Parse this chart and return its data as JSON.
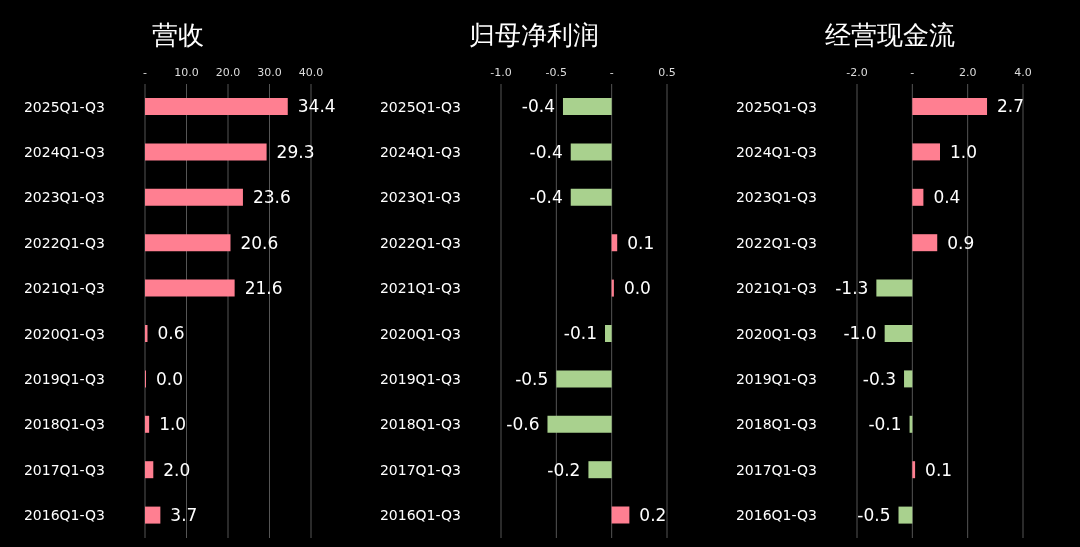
{
  "chart_data": [
    {
      "type": "bar",
      "orientation": "horizontal",
      "title": "营收",
      "categories": [
        "2025Q1-Q3",
        "2024Q1-Q3",
        "2023Q1-Q3",
        "2022Q1-Q3",
        "2021Q1-Q3",
        "2020Q1-Q3",
        "2019Q1-Q3",
        "2018Q1-Q3",
        "2017Q1-Q3",
        "2016Q1-Q3"
      ],
      "values": [
        34.4,
        29.3,
        23.6,
        20.6,
        21.6,
        0.6,
        0.0,
        1.0,
        2.0,
        3.7
      ],
      "value_labels": [
        "34.4",
        "29.3",
        "23.6",
        "20.6",
        "21.6",
        "0.6",
        "0.0",
        "1.0",
        "2.0",
        "3.7"
      ],
      "colors": [
        "#ff7f91",
        "#ff7f91",
        "#ff7f91",
        "#ff7f91",
        "#ff7f91",
        "#ff7f91",
        "#ff7f91",
        "#ff7f91",
        "#ff7f91",
        "#ff7f91"
      ],
      "xlim": [
        0,
        40
      ],
      "xticks": [
        {
          "value": 0,
          "label": "-"
        },
        {
          "value": 10,
          "label": "10.0"
        },
        {
          "value": 20,
          "label": "20.0"
        },
        {
          "value": 30,
          "label": "30.0"
        },
        {
          "value": 40,
          "label": "40.0"
        }
      ],
      "grid": "x"
    },
    {
      "type": "bar",
      "orientation": "horizontal",
      "title": "归母净利润",
      "categories": [
        "2025Q1-Q3",
        "2024Q1-Q3",
        "2023Q1-Q3",
        "2022Q1-Q3",
        "2021Q1-Q3",
        "2020Q1-Q3",
        "2019Q1-Q3",
        "2018Q1-Q3",
        "2017Q1-Q3",
        "2016Q1-Q3"
      ],
      "values": [
        -0.44,
        -0.37,
        -0.37,
        0.05,
        0.02,
        -0.06,
        -0.5,
        -0.58,
        -0.21,
        0.16
      ],
      "value_labels": [
        "-0.4",
        "-0.4",
        "-0.4",
        "0.1",
        "0.0",
        "-0.1",
        "-0.5",
        "-0.6",
        "-0.2",
        "0.2"
      ],
      "colors": [
        "#a9d18e",
        "#a9d18e",
        "#a9d18e",
        "#ff7f91",
        "#ff7f91",
        "#a9d18e",
        "#a9d18e",
        "#a9d18e",
        "#a9d18e",
        "#ff7f91"
      ],
      "xlim": [
        -1.0,
        0.5
      ],
      "xticks": [
        {
          "value": -1,
          "label": "-1.0"
        },
        -0.5,
        {
          "value": 0,
          "label": "-"
        },
        0.5
      ],
      "grid": "x"
    },
    {
      "type": "bar",
      "orientation": "horizontal",
      "title": "经营现金流",
      "categories": [
        "2025Q1-Q3",
        "2024Q1-Q3",
        "2023Q1-Q3",
        "2022Q1-Q3",
        "2021Q1-Q3",
        "2020Q1-Q3",
        "2019Q1-Q3",
        "2018Q1-Q3",
        "2017Q1-Q3",
        "2016Q1-Q3"
      ],
      "values": [
        2.7,
        1.0,
        0.4,
        0.9,
        -1.3,
        -1.0,
        -0.3,
        -0.1,
        0.1,
        -0.5
      ],
      "value_labels": [
        "2.7",
        "1.0",
        "0.4",
        "0.9",
        "-1.3",
        "-1.0",
        "-0.3",
        "-0.1",
        "0.1",
        "-0.5"
      ],
      "colors": [
        "#ff7f91",
        "#ff7f91",
        "#ff7f91",
        "#ff7f91",
        "#a9d18e",
        "#a9d18e",
        "#a9d18e",
        "#a9d18e",
        "#ff7f91",
        "#a9d18e"
      ],
      "xlim": [
        -2.0,
        4.0
      ],
      "xticks": [
        {
          "value": -2,
          "label": "-2.0"
        },
        {
          "value": 0,
          "label": "-"
        },
        {
          "value": 2,
          "label": "2.0"
        },
        {
          "value": 4,
          "label": "4.0"
        }
      ],
      "grid": "x"
    }
  ]
}
